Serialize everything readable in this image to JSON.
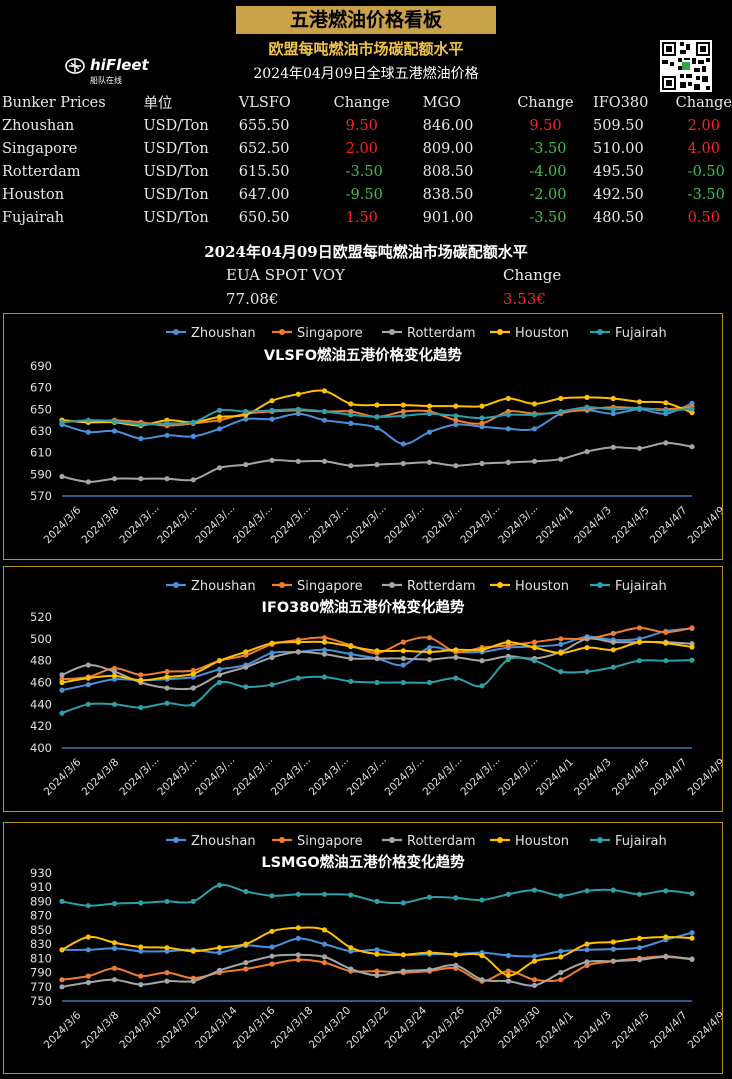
{
  "header": {
    "banner": "五港燃油价格看板",
    "subtitle": "欧盟每吨燃油市场碳配额水平",
    "date_title": "2024年04月09日全球五港燃油价格",
    "logo_text": "hiFleet",
    "logo_sub": "船队在线"
  },
  "table": {
    "headers": [
      "Bunker Prices",
      "单位",
      "VLSFO",
      "Change",
      "MGO",
      "Change",
      "IFO380",
      "Change"
    ],
    "rows": [
      {
        "port": "Zhoushan",
        "unit": "USD/Ton",
        "vlsfo": "655.50",
        "vlsfo_chg": "9.50",
        "mgo": "846.00",
        "mgo_chg": "9.50",
        "ifo": "509.50",
        "ifo_chg": "2.00"
      },
      {
        "port": "Singapore",
        "unit": "USD/Ton",
        "vlsfo": "652.50",
        "vlsfo_chg": "2.00",
        "mgo": "809.00",
        "mgo_chg": "-3.50",
        "ifo": "510.00",
        "ifo_chg": "4.00"
      },
      {
        "port": "Rotterdam",
        "unit": "USD/Ton",
        "vlsfo": "615.50",
        "vlsfo_chg": "-3.50",
        "mgo": "808.50",
        "mgo_chg": "-4.00",
        "ifo": "495.50",
        "ifo_chg": "-0.50"
      },
      {
        "port": "Houston",
        "unit": "USD/Ton",
        "vlsfo": "647.00",
        "vlsfo_chg": "-9.50",
        "mgo": "838.50",
        "mgo_chg": "-2.00",
        "ifo": "492.50",
        "ifo_chg": "-3.50"
      },
      {
        "port": "Fujairah",
        "unit": "USD/Ton",
        "vlsfo": "650.50",
        "vlsfo_chg": "1.50",
        "mgo": "901.00",
        "mgo_chg": "-3.50",
        "ifo": "480.50",
        "ifo_chg": "0.50"
      }
    ]
  },
  "eua": {
    "title": "2024年04月09日欧盟每吨燃油市场碳配额水平",
    "label": "EUA SPOT VOY",
    "change_label": "Change",
    "value": "77.08€",
    "change": "3.53€"
  },
  "colors": {
    "Zhoushan": "#4a90d9",
    "Singapore": "#ed7d31",
    "Rotterdam": "#a5a5a5",
    "Houston": "#ffc000",
    "Fujairah": "#2e9fa8",
    "gold": "#c9a24a",
    "negative": "#3fbf4f",
    "positive": "#ff2020"
  },
  "chart_data": [
    {
      "type": "line",
      "title": "VLSFO燃油五港价格变化趋势",
      "x": [
        "2024/3/6",
        "2024/3/7",
        "2024/3/8",
        "2024/3/11",
        "2024/3/12",
        "2024/3/13",
        "2024/3/14",
        "2024/3/15",
        "2024/3/18",
        "2024/3/19",
        "2024/3/20",
        "2024/3/21",
        "2024/3/22",
        "2024/3/25",
        "2024/3/26",
        "2024/3/27",
        "2024/3/28",
        "2024/3/29",
        "2024/4/1",
        "2024/4/2",
        "2024/4/3",
        "2024/4/4",
        "2024/4/5",
        "2024/4/8",
        "2024/4/9"
      ],
      "x_ticks": [
        "2024/3/6",
        "2024/3/8",
        "2024/3/...",
        "2024/3/...",
        "2024/3/...",
        "2024/3/...",
        "2024/3/...",
        "2024/3/...",
        "2024/3/...",
        "2024/3/...",
        "2024/3/...",
        "2024/3/...",
        "2024/3/...",
        "2024/4/1",
        "2024/4/3",
        "2024/4/5",
        "2024/4/7",
        "2024/4/9"
      ],
      "ylim": [
        570,
        690
      ],
      "yticks": [
        570,
        590,
        610,
        630,
        650,
        670,
        690
      ],
      "series": [
        {
          "name": "Zhoushan",
          "values": [
            636,
            629,
            630,
            623,
            626,
            625,
            632,
            641,
            641,
            646,
            640,
            637,
            633,
            618,
            629,
            636,
            634,
            632,
            632,
            646,
            649,
            646,
            650,
            646,
            655.5
          ]
        },
        {
          "name": "Singapore",
          "values": [
            640,
            638,
            640,
            638,
            635,
            637,
            640,
            646,
            648,
            649,
            648,
            648,
            643,
            648,
            648,
            640,
            637,
            648,
            646,
            647,
            650,
            652,
            651,
            650,
            652.5
          ]
        },
        {
          "name": "Rotterdam",
          "values": [
            588,
            583,
            586,
            586,
            586,
            585,
            596,
            599,
            603,
            602,
            602,
            598,
            599,
            600,
            601,
            598,
            600,
            601,
            602,
            604,
            611,
            615,
            614,
            619,
            615.5
          ]
        },
        {
          "name": "Houston",
          "values": [
            640,
            638,
            638,
            635,
            640,
            638,
            643,
            645,
            658,
            664,
            667,
            655,
            654,
            654,
            653,
            653,
            653,
            660,
            655,
            660,
            661,
            660,
            657,
            656,
            647
          ]
        },
        {
          "name": "Fujairah",
          "values": [
            638,
            640,
            639,
            636,
            637,
            638,
            649,
            648,
            649,
            650,
            648,
            645,
            643,
            644,
            646,
            644,
            642,
            645,
            645,
            648,
            652,
            650,
            651,
            649,
            650.5
          ]
        }
      ]
    },
    {
      "type": "line",
      "title": "IFO380燃油五港价格变化趋势",
      "x": [
        "2024/3/6",
        "2024/3/7",
        "2024/3/8",
        "2024/3/11",
        "2024/3/12",
        "2024/3/13",
        "2024/3/14",
        "2024/3/15",
        "2024/3/18",
        "2024/3/19",
        "2024/3/20",
        "2024/3/21",
        "2024/3/22",
        "2024/3/25",
        "2024/3/26",
        "2024/3/27",
        "2024/3/28",
        "2024/3/29",
        "2024/4/1",
        "2024/4/2",
        "2024/4/3",
        "2024/4/4",
        "2024/4/5",
        "2024/4/8",
        "2024/4/9"
      ],
      "x_ticks": [
        "2024/3/6",
        "2024/3/8",
        "2024/3/...",
        "2024/3/...",
        "2024/3/...",
        "2024/3/...",
        "2024/3/...",
        "2024/3/...",
        "2024/3/...",
        "2024/3/...",
        "2024/3/...",
        "2024/3/...",
        "2024/3/...",
        "2024/4/1",
        "2024/4/3",
        "2024/4/5",
        "2024/4/7",
        "2024/4/9"
      ],
      "ylim": [
        400,
        520
      ],
      "yticks": [
        400,
        420,
        440,
        460,
        480,
        500,
        520
      ],
      "series": [
        {
          "name": "Zhoushan",
          "values": [
            453,
            458,
            463,
            462,
            463,
            465,
            472,
            476,
            487,
            488,
            490,
            486,
            482,
            476,
            492,
            488,
            488,
            492,
            493,
            495,
            502,
            499,
            500,
            507,
            509.5
          ]
        },
        {
          "name": "Singapore",
          "values": [
            463,
            465,
            473,
            467,
            470,
            471,
            480,
            485,
            495,
            499,
            501,
            494,
            487,
            497,
            501,
            488,
            492,
            494,
            497,
            500,
            500,
            505,
            510,
            506,
            510
          ]
        },
        {
          "name": "Rotterdam",
          "values": [
            467,
            476,
            470,
            460,
            455,
            455,
            467,
            474,
            483,
            488,
            486,
            482,
            482,
            482,
            481,
            483,
            480,
            484,
            482,
            488,
            500,
            497,
            497,
            497,
            495.5
          ]
        },
        {
          "name": "Houston",
          "values": [
            460,
            464,
            466,
            462,
            465,
            468,
            480,
            488,
            496,
            497,
            497,
            493,
            489,
            489,
            488,
            490,
            490,
            497,
            492,
            487,
            492,
            490,
            497,
            496,
            492.5
          ]
        },
        {
          "name": "Fujairah",
          "values": [
            432,
            440,
            440,
            437,
            441,
            440,
            460,
            456,
            458,
            464,
            465,
            461,
            460,
            460,
            460,
            464,
            457,
            481,
            480,
            470,
            470,
            474,
            480,
            480,
            480.5
          ]
        }
      ]
    },
    {
      "type": "line",
      "title": "LSMGO燃油五港价格变化趋势",
      "x": [
        "2024/3/6",
        "2024/3/7",
        "2024/3/8",
        "2024/3/11",
        "2024/3/12",
        "2024/3/13",
        "2024/3/14",
        "2024/3/15",
        "2024/3/18",
        "2024/3/19",
        "2024/3/20",
        "2024/3/21",
        "2024/3/22",
        "2024/3/25",
        "2024/3/26",
        "2024/3/27",
        "2024/3/28",
        "2024/3/29",
        "2024/4/1",
        "2024/4/2",
        "2024/4/3",
        "2024/4/4",
        "2024/4/5",
        "2024/4/8",
        "2024/4/9"
      ],
      "x_ticks": [
        "2024/3/6",
        "2024/3/8",
        "2024/3/10",
        "2024/3/12",
        "2024/3/14",
        "2024/3/16",
        "2024/3/18",
        "2024/3/20",
        "2024/3/22",
        "2024/3/24",
        "2024/3/26",
        "2024/3/28",
        "2024/3/30",
        "2024/4/1",
        "2024/4/3",
        "2024/4/5",
        "2024/4/7",
        "2024/4/9"
      ],
      "ylim": [
        750,
        930
      ],
      "yticks": [
        750,
        770,
        790,
        810,
        830,
        850,
        870,
        890,
        910,
        930
      ],
      "series": [
        {
          "name": "Zhoushan",
          "values": [
            822,
            822,
            824,
            820,
            820,
            822,
            818,
            828,
            826,
            838,
            830,
            820,
            822,
            815,
            816,
            816,
            818,
            814,
            813,
            820,
            822,
            823,
            825,
            836,
            846
          ]
        },
        {
          "name": "Singapore",
          "values": [
            780,
            785,
            796,
            785,
            790,
            782,
            790,
            795,
            802,
            808,
            804,
            792,
            792,
            790,
            792,
            796,
            778,
            792,
            780,
            780,
            800,
            806,
            810,
            813,
            809
          ]
        },
        {
          "name": "Rotterdam",
          "values": [
            770,
            776,
            780,
            773,
            778,
            778,
            793,
            804,
            813,
            815,
            812,
            795,
            786,
            792,
            794,
            800,
            780,
            778,
            772,
            790,
            805,
            806,
            808,
            812,
            808.5
          ]
        },
        {
          "name": "Houston",
          "values": [
            822,
            840,
            832,
            826,
            825,
            820,
            825,
            830,
            848,
            853,
            850,
            825,
            816,
            815,
            818,
            815,
            814,
            786,
            806,
            812,
            830,
            833,
            838,
            840,
            838.5
          ]
        },
        {
          "name": "Fujairah",
          "values": [
            890,
            884,
            887,
            888,
            890,
            890,
            913,
            904,
            898,
            900,
            900,
            899,
            890,
            888,
            896,
            895,
            892,
            900,
            906,
            898,
            905,
            906,
            900,
            905,
            901
          ]
        }
      ]
    }
  ]
}
